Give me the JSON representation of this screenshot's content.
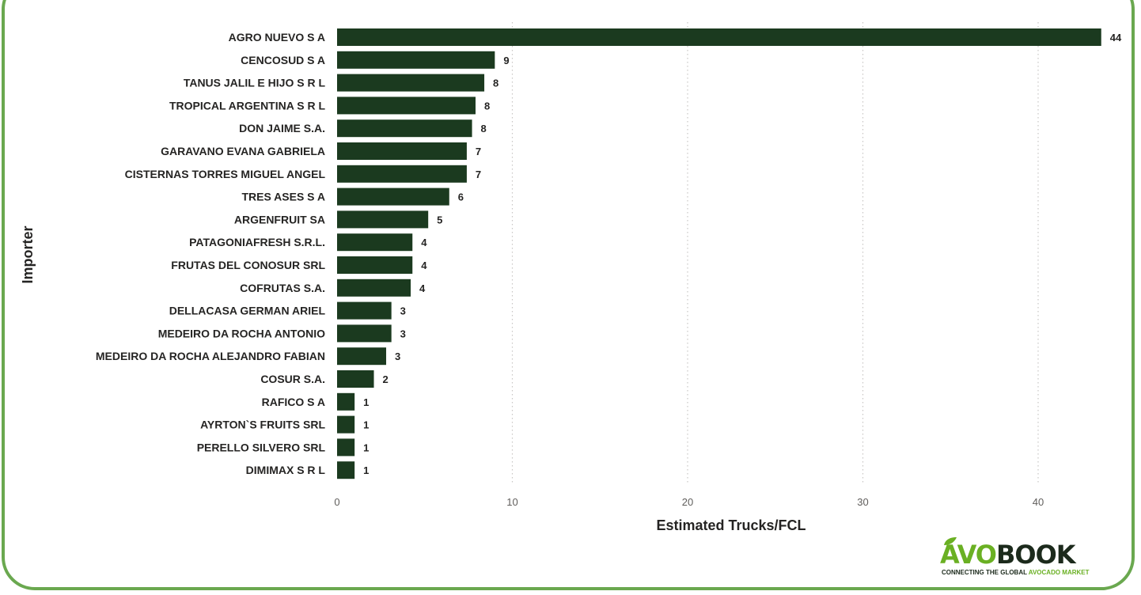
{
  "chart_data": {
    "type": "bar",
    "orientation": "horizontal",
    "xlabel": "Estimated Trucks/FCL",
    "ylabel": "Importer",
    "xlim": [
      0,
      44
    ],
    "xticks": [
      0,
      10,
      20,
      30,
      40
    ],
    "grid": "vertical dotted",
    "categories": [
      "AGRO NUEVO S A",
      "CENCOSUD S A",
      "TANUS JALIL E HIJO S R L",
      "TROPICAL ARGENTINA S R L",
      "DON JAIME S.A.",
      "GARAVANO EVANA GABRIELA",
      "CISTERNAS TORRES MIGUEL ANGEL",
      "TRES ASES S A",
      "ARGENFRUIT SA",
      "PATAGONIAFRESH S.R.L.",
      "FRUTAS DEL CONOSUR SRL",
      "COFRUTAS S.A.",
      "DELLACASA GERMAN ARIEL",
      "MEDEIRO DA ROCHA ANTONIO",
      "MEDEIRO DA ROCHA ALEJANDRO FABIAN",
      "COSUR S.A.",
      "RAFICO S A",
      "AYRTON`S FRUITS SRL",
      "PERELLO SILVERO SRL",
      "DIMIMAX S R L"
    ],
    "values": [
      43.6,
      9.0,
      8.4,
      7.9,
      7.7,
      7.4,
      7.4,
      6.4,
      5.2,
      4.3,
      4.3,
      4.2,
      3.1,
      3.1,
      2.8,
      2.1,
      1.0,
      1.0,
      1.0,
      1.0
    ],
    "data_labels": [
      "44",
      "9",
      "8",
      "8",
      "8",
      "7",
      "7",
      "6",
      "5",
      "4",
      "4",
      "4",
      "3",
      "3",
      "3",
      "2",
      "1",
      "1",
      "1",
      "1"
    ],
    "bar_color": "#1b3a1f"
  },
  "logo": {
    "title_part1": "AVO",
    "title_part2": "BOOK",
    "tagline_part1": "CONNECTING THE GLOBAL ",
    "tagline_part2": "AVOCADO MARKET",
    "color_green": "#6ab023",
    "color_dark": "#1c2a1c"
  },
  "colors": {
    "frame": "#6aa84f",
    "background": "#ffffff"
  }
}
